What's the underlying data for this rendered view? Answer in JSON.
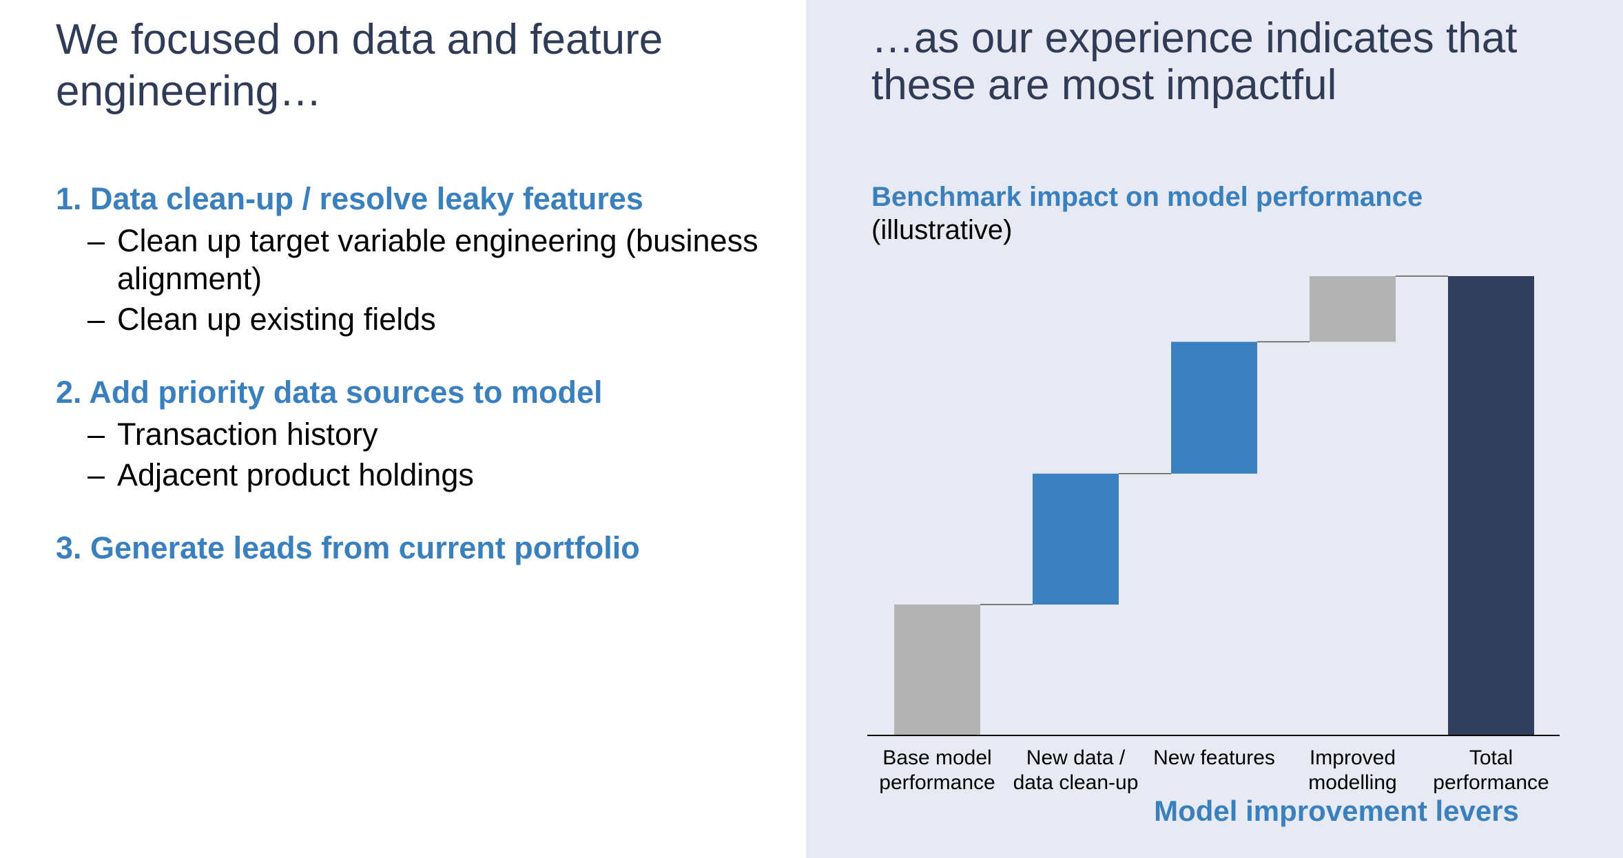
{
  "left": {
    "title": "We focused on data and feature engineering…",
    "points": [
      {
        "heading": "1. Data clean-up / resolve leaky features",
        "items": [
          "Clean up target variable engineering (business alignment)",
          "Clean up existing fields"
        ]
      },
      {
        "heading": "2. Add priority data sources to model",
        "items": [
          "Transaction history",
          "Adjacent product holdings"
        ]
      },
      {
        "heading": "3. Generate leads from current portfolio",
        "items": []
      }
    ],
    "dash": "–"
  },
  "right": {
    "title": "…as our experience indicates that these are most impactful"
  },
  "chart_data": {
    "type": "bar",
    "subtype": "waterfall",
    "title": "Benchmark impact on model performance",
    "subtitle": "(illustrative)",
    "xlabel": "Model improvement levers",
    "ylabel": "",
    "ylim": [
      0,
      100
    ],
    "categories": [
      [
        "Base model",
        "performance"
      ],
      [
        "New data /",
        "data clean-up"
      ],
      [
        "New features"
      ],
      [
        "Improved",
        "modelling"
      ],
      [
        "Total",
        "performance"
      ]
    ],
    "bars": [
      {
        "kind": "base",
        "start": 0,
        "end": 28.5,
        "color": "#b3b3b3"
      },
      {
        "kind": "increment",
        "start": 28.5,
        "end": 57,
        "color": "#3a7fbe"
      },
      {
        "kind": "increment",
        "start": 57,
        "end": 85.7,
        "color": "#3a7fbe"
      },
      {
        "kind": "increment",
        "start": 85.7,
        "end": 100,
        "color": "#b3b3b3"
      },
      {
        "kind": "total",
        "start": 0,
        "end": 100,
        "color": "#313e5c"
      }
    ],
    "grid": false,
    "legend": "none"
  }
}
